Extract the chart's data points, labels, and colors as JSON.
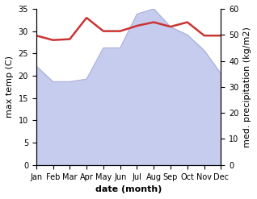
{
  "months": [
    "Jan",
    "Feb",
    "Mar",
    "Apr",
    "May",
    "Jun",
    "Jul",
    "Aug",
    "Sep",
    "Oct",
    "Nov",
    "Dec"
  ],
  "temperature": [
    29.0,
    28.0,
    28.2,
    33.0,
    30.0,
    30.0,
    31.2,
    32.0,
    31.0,
    32.0,
    29.0,
    29.0
  ],
  "precipitation": [
    38.0,
    32.0,
    32.0,
    33.0,
    45.0,
    45.0,
    58.0,
    60.0,
    53.0,
    50.0,
    44.0,
    35.0
  ],
  "temp_color": "#cc3333",
  "precip_fill_color": "#c5ccee",
  "precip_line_color": "#aab0dd",
  "temp_ylim": [
    0,
    35
  ],
  "precip_ylim": [
    0,
    60
  ],
  "xlabel": "date (month)",
  "ylabel_left": "max temp (C)",
  "ylabel_right": "med. precipitation (kg/m2)",
  "bg_color": "#ffffff",
  "temp_linewidth": 1.8,
  "label_fontsize": 8,
  "tick_fontsize": 7
}
